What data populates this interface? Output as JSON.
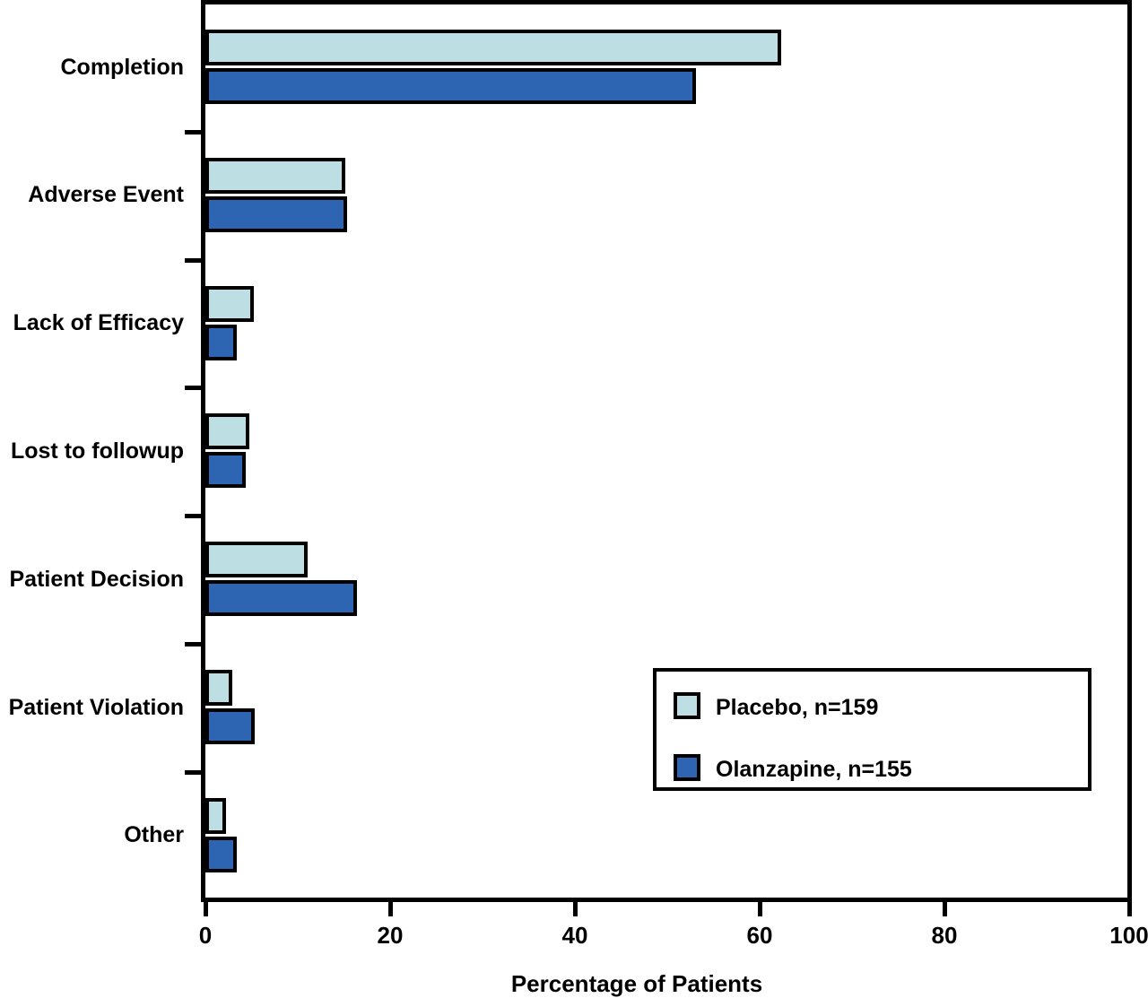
{
  "chart_data": {
    "type": "bar",
    "orientation": "horizontal",
    "title": "",
    "xlabel": "Percentage of Patients",
    "ylabel": "",
    "xlim": [
      0,
      100
    ],
    "xticks": [
      0,
      20,
      40,
      60,
      80,
      100
    ],
    "grid": false,
    "legend_position": "inside lower right",
    "background_color": "#FFFFFF",
    "outline_color": "#000000",
    "categories": [
      "Completion",
      "Adverse Event",
      "Lack of Efficacy",
      "Lost to followup",
      "Patient Decision",
      "Patient Violation",
      "Other"
    ],
    "series": [
      {
        "name": "Placebo, n=159",
        "color": "#BDDEE2",
        "values": [
          62.3,
          15.1,
          5.2,
          4.8,
          11.1,
          2.9,
          2.2
        ]
      },
      {
        "name": "Olanzapine, n=155",
        "color": "#2E65B2",
        "values": [
          53.1,
          15.3,
          3.4,
          4.4,
          16.4,
          5.3,
          3.4
        ]
      }
    ]
  }
}
